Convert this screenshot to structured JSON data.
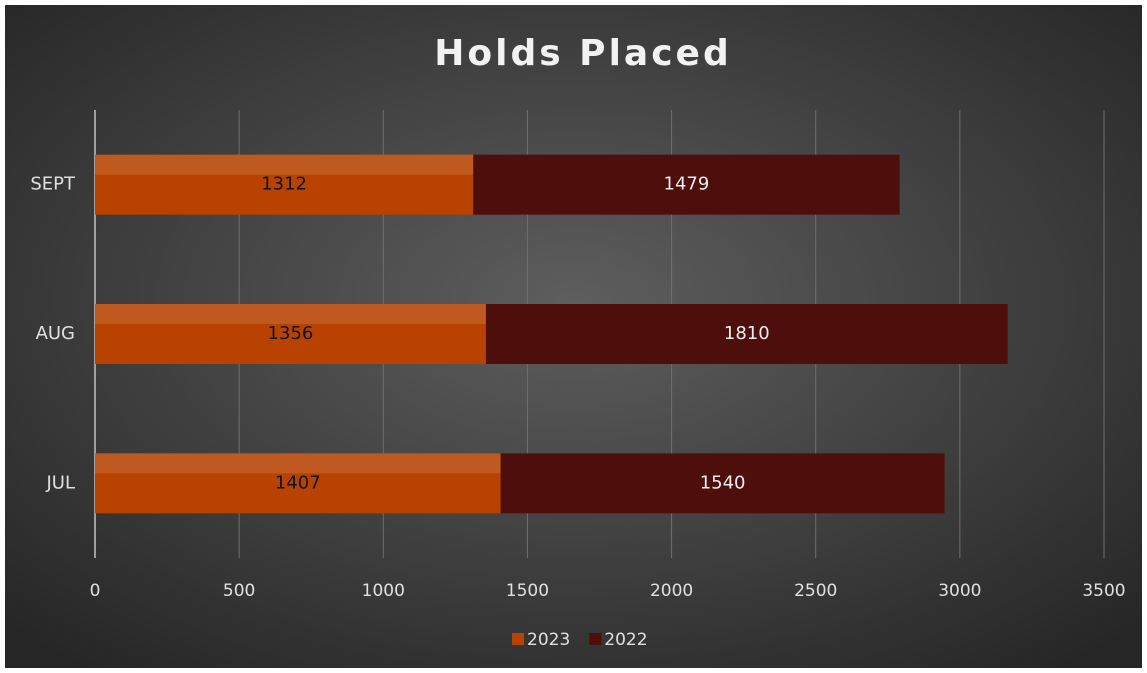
{
  "chart_data": {
    "type": "bar",
    "orientation": "horizontal",
    "stacked": true,
    "title": "Holds Placed",
    "categories": [
      "JUL",
      "AUG",
      "SEPT"
    ],
    "series": [
      {
        "name": "2023",
        "color": "#b84300",
        "values": [
          1407,
          1356,
          1312
        ]
      },
      {
        "name": "2022",
        "color": "#4e0f0c",
        "values": [
          1540,
          1810,
          1479
        ]
      }
    ],
    "xlim": [
      0,
      3500
    ],
    "xticks": [
      0,
      500,
      1000,
      1500,
      2000,
      2500,
      3000,
      3500
    ],
    "grid": true,
    "legend": "bottom"
  }
}
